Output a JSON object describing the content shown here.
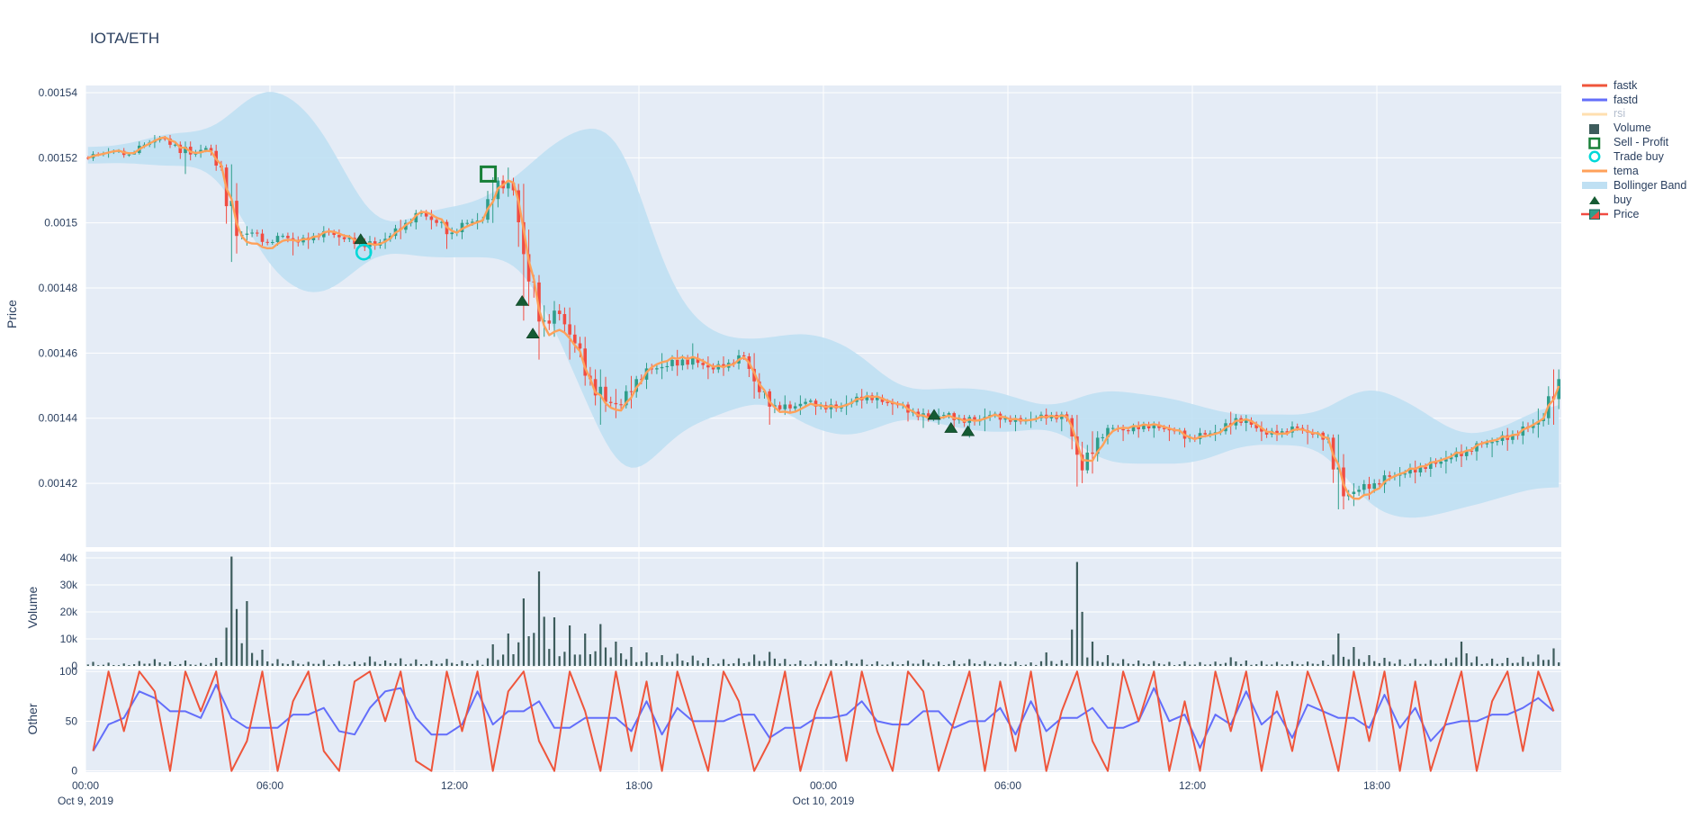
{
  "chart_data": {
    "type": "candlestick-multi-panel",
    "title": "IOTA/ETH",
    "colors": {
      "text": "#2A3F5F",
      "plot_bg": "#E5ECF6",
      "grid": "#FFFFFF",
      "candle_up": "#2F9E8B",
      "candle_down": "#F14C42",
      "volume_bar": "#3D5C5C",
      "fastk": "#EF553B",
      "fastd": "#636EFA",
      "tema": "#FFA15A",
      "bollinger": "#BFE0F3",
      "buy": "#155B33",
      "sell": "#188038",
      "trade_buy": "#00D8D8",
      "rsi_hidden": "#FFDFB0",
      "legend_text_hidden": "#B4BECE"
    },
    "xticks": [
      {
        "t": 0,
        "label": "00:00",
        "date": "Oct 9, 2019"
      },
      {
        "t": 6,
        "label": "06:00"
      },
      {
        "t": 12,
        "label": "12:00"
      },
      {
        "t": 18,
        "label": "18:00"
      },
      {
        "t": 24,
        "label": "00:00",
        "date": "Oct 10, 2019"
      },
      {
        "t": 30,
        "label": "06:00"
      },
      {
        "t": 36,
        "label": "12:00"
      },
      {
        "t": 42,
        "label": "18:00"
      }
    ],
    "panels": {
      "price": {
        "ylabel": "Price",
        "ylim": [
          1400.4,
          1542.2
        ],
        "yticks": [
          {
            "v": 1420,
            "l": "0.00142"
          },
          {
            "v": 1440,
            "l": "0.00144"
          },
          {
            "v": 1460,
            "l": "0.00146"
          },
          {
            "v": 1480,
            "l": "0.00148"
          },
          {
            "v": 1500,
            "l": "0.0015"
          },
          {
            "v": 1520,
            "l": "0.00152"
          },
          {
            "v": 1540,
            "l": "0.00154"
          }
        ]
      },
      "volume": {
        "ylabel": "Volume",
        "ylim": [
          -333,
          42333
        ],
        "yticks": [
          {
            "v": 0,
            "l": "0"
          },
          {
            "v": 10000,
            "l": "10k"
          },
          {
            "v": 20000,
            "l": "20k"
          },
          {
            "v": 30000,
            "l": "30k"
          },
          {
            "v": 40000,
            "l": "40k"
          }
        ]
      },
      "other": {
        "ylabel": "Other",
        "ylim": [
          -1.2,
          102
        ],
        "yticks": [
          {
            "v": 0,
            "l": "0"
          },
          {
            "v": 50,
            "l": "50"
          },
          {
            "v": 100,
            "l": "100"
          }
        ]
      }
    },
    "legend": {
      "items": [
        {
          "label": "fastk",
          "swatch": "line",
          "color": "#EF553B"
        },
        {
          "label": "fastd",
          "swatch": "line",
          "color": "#636EFA"
        },
        {
          "label": "rsi",
          "swatch": "line",
          "color": "#FFDFB0",
          "hidden": true
        },
        {
          "label": "Volume",
          "swatch": "fill-square",
          "color": "#3D5C5C"
        },
        {
          "label": "Sell - Profit",
          "swatch": "open-square",
          "color": "#188038"
        },
        {
          "label": "Trade buy",
          "swatch": "open-circle",
          "color": "#00D8D8"
        },
        {
          "label": "tema",
          "swatch": "line",
          "color": "#FFA15A"
        },
        {
          "label": "Bollinger Band",
          "swatch": "band",
          "color": "#BFE0F3"
        },
        {
          "label": "buy",
          "swatch": "triangle",
          "color": "#155B33"
        },
        {
          "label": "Price",
          "swatch": "candle",
          "color": "#2F9E8B"
        }
      ]
    },
    "candles": {
      "start": "Oct 9, 2019 00:00",
      "interval_hours": 0.5,
      "price_unit": 1e-06,
      "ohlcv": [
        [
          1520,
          1522,
          1519,
          1521,
          1500
        ],
        [
          1521,
          1523,
          1520,
          1522,
          1200
        ],
        [
          1522,
          1523,
          1520,
          1521,
          900
        ],
        [
          1521,
          1525,
          1521,
          1524,
          1800
        ],
        [
          1524,
          1527,
          1523,
          1526,
          2500
        ],
        [
          1526,
          1527,
          1523,
          1524,
          1600
        ],
        [
          1524,
          1525,
          1515,
          1521,
          2000
        ],
        [
          1521,
          1524,
          1520,
          1523,
          1100
        ],
        [
          1523,
          1524,
          1516,
          1517,
          3000
        ],
        [
          1517,
          1518,
          1488,
          1496,
          40500
        ],
        [
          1496,
          1499,
          1493,
          1497,
          24000
        ],
        [
          1497,
          1498,
          1493,
          1494,
          6000
        ],
        [
          1494,
          1497,
          1493,
          1496,
          2500
        ],
        [
          1496,
          1497,
          1490,
          1494,
          2000
        ],
        [
          1494,
          1497,
          1492,
          1496,
          1500
        ],
        [
          1496,
          1499,
          1494,
          1497,
          2200
        ],
        [
          1497,
          1498,
          1493,
          1495,
          1800
        ],
        [
          1495,
          1497,
          1492,
          1494,
          1600
        ],
        [
          1494,
          1496,
          1489,
          1493,
          3500
        ],
        [
          1493,
          1497,
          1492,
          1496,
          2000
        ],
        [
          1496,
          1501,
          1495,
          1500,
          2800
        ],
        [
          1500,
          1504,
          1498,
          1503,
          2400
        ],
        [
          1503,
          1504,
          1498,
          1500,
          2000
        ],
        [
          1500,
          1501,
          1492,
          1497,
          2600
        ],
        [
          1497,
          1501,
          1495,
          1500,
          1900
        ],
        [
          1500,
          1503,
          1498,
          1501,
          2100
        ],
        [
          1501,
          1514,
          1500,
          1513,
          8000
        ],
        [
          1513,
          1517,
          1508,
          1510,
          12000
        ],
        [
          1510,
          1512,
          1470,
          1482,
          25000
        ],
        [
          1482,
          1484,
          1458,
          1470,
          35000
        ],
        [
          1470,
          1476,
          1465,
          1472,
          18000
        ],
        [
          1472,
          1474,
          1458,
          1463,
          15000
        ],
        [
          1463,
          1465,
          1450,
          1452,
          12000
        ],
        [
          1452,
          1455,
          1438,
          1445,
          15500
        ],
        [
          1445,
          1449,
          1440,
          1444,
          9000
        ],
        [
          1444,
          1453,
          1443,
          1452,
          7000
        ],
        [
          1452,
          1457,
          1449,
          1455,
          5000
        ],
        [
          1455,
          1460,
          1452,
          1456,
          4000
        ],
        [
          1456,
          1461,
          1453,
          1458,
          4500
        ],
        [
          1458,
          1463,
          1455,
          1457,
          3800
        ],
        [
          1457,
          1459,
          1452,
          1455,
          3000
        ],
        [
          1455,
          1459,
          1453,
          1457,
          2500
        ],
        [
          1457,
          1461,
          1455,
          1459,
          2800
        ],
        [
          1459,
          1460,
          1446,
          1448,
          4200
        ],
        [
          1448,
          1449,
          1438,
          1444,
          5200
        ],
        [
          1444,
          1447,
          1441,
          1443,
          2600
        ],
        [
          1443,
          1447,
          1441,
          1445,
          2000
        ],
        [
          1445,
          1446,
          1441,
          1444,
          1800
        ],
        [
          1444,
          1446,
          1440,
          1443,
          2200
        ],
        [
          1443,
          1447,
          1441,
          1445,
          1900
        ],
        [
          1445,
          1449,
          1443,
          1447,
          2400
        ],
        [
          1447,
          1448,
          1443,
          1445,
          1700
        ],
        [
          1445,
          1446,
          1441,
          1444,
          1500
        ],
        [
          1444,
          1445,
          1439,
          1442,
          1900
        ],
        [
          1442,
          1443,
          1437,
          1440,
          2300
        ],
        [
          1440,
          1443,
          1438,
          1441,
          1600
        ],
        [
          1441,
          1442,
          1436,
          1440,
          2000
        ],
        [
          1440,
          1441,
          1434,
          1439,
          2500
        ],
        [
          1439,
          1443,
          1436,
          1441,
          1800
        ],
        [
          1441,
          1442,
          1437,
          1440,
          1400
        ],
        [
          1440,
          1441,
          1436,
          1439,
          1600
        ],
        [
          1439,
          1442,
          1437,
          1440,
          1300
        ],
        [
          1440,
          1443,
          1438,
          1441,
          5000
        ],
        [
          1441,
          1442,
          1436,
          1440,
          2100
        ],
        [
          1440,
          1441,
          1419,
          1424,
          38500
        ],
        [
          1424,
          1436,
          1423,
          1434,
          9000
        ],
        [
          1434,
          1438,
          1432,
          1437,
          4000
        ],
        [
          1437,
          1438,
          1433,
          1436,
          2500
        ],
        [
          1436,
          1439,
          1434,
          1438,
          2000
        ],
        [
          1438,
          1439,
          1434,
          1437,
          1800
        ],
        [
          1437,
          1438,
          1433,
          1436,
          1500
        ],
        [
          1436,
          1437,
          1431,
          1434,
          1700
        ],
        [
          1434,
          1437,
          1432,
          1435,
          1400
        ],
        [
          1435,
          1438,
          1433,
          1436,
          1600
        ],
        [
          1436,
          1442,
          1435,
          1440,
          3200
        ],
        [
          1440,
          1441,
          1436,
          1438,
          2000
        ],
        [
          1438,
          1439,
          1433,
          1435,
          1800
        ],
        [
          1435,
          1438,
          1433,
          1436,
          1500
        ],
        [
          1436,
          1439,
          1434,
          1437,
          1700
        ],
        [
          1437,
          1438,
          1432,
          1435,
          1600
        ],
        [
          1435,
          1436,
          1430,
          1434,
          2000
        ],
        [
          1434,
          1435,
          1412,
          1416,
          12000
        ],
        [
          1416,
          1420,
          1413,
          1418,
          7000
        ],
        [
          1418,
          1422,
          1415,
          1420,
          4000
        ],
        [
          1420,
          1424,
          1417,
          1422,
          3000
        ],
        [
          1422,
          1425,
          1419,
          1423,
          2400
        ],
        [
          1423,
          1427,
          1420,
          1425,
          2600
        ],
        [
          1425,
          1428,
          1422,
          1426,
          2200
        ],
        [
          1426,
          1430,
          1423,
          1428,
          2800
        ],
        [
          1428,
          1432,
          1425,
          1430,
          9000
        ],
        [
          1430,
          1433,
          1427,
          1432,
          3500
        ],
        [
          1432,
          1434,
          1428,
          1433,
          2700
        ],
        [
          1433,
          1437,
          1430,
          1435,
          3000
        ],
        [
          1435,
          1439,
          1432,
          1437,
          3400
        ],
        [
          1437,
          1443,
          1434,
          1440,
          4200
        ],
        [
          1440,
          1455,
          1438,
          1452,
          6500
        ]
      ]
    },
    "fastk": [
      20,
      100,
      40,
      100,
      80,
      0,
      100,
      60,
      100,
      0,
      30,
      100,
      0,
      70,
      100,
      20,
      0,
      90,
      100,
      50,
      100,
      10,
      0,
      100,
      40,
      100,
      0,
      80,
      100,
      30,
      0,
      100,
      60,
      0,
      100,
      20,
      90,
      0,
      100,
      50,
      0,
      100,
      70,
      0,
      30,
      100,
      0,
      60,
      100,
      10,
      100,
      40,
      0,
      100,
      80,
      0,
      50,
      100,
      0,
      90,
      20,
      100,
      0,
      60,
      100,
      30,
      0,
      100,
      50,
      100,
      0,
      70,
      0,
      100,
      40,
      100,
      0,
      80,
      20,
      100,
      60,
      0,
      100,
      30,
      100,
      0,
      90,
      0,
      50,
      100,
      0,
      70,
      100,
      20,
      100,
      60
    ],
    "markers": {
      "buy": [
        [
          8.95,
          1495
        ],
        [
          14.2,
          1476
        ],
        [
          14.55,
          1466
        ],
        [
          27.6,
          1441
        ],
        [
          28.15,
          1437
        ],
        [
          28.7,
          1436
        ]
      ],
      "sell_profit": [
        [
          13.1,
          1515
        ]
      ],
      "trade_buy": [
        [
          9.05,
          1491
        ]
      ]
    }
  }
}
